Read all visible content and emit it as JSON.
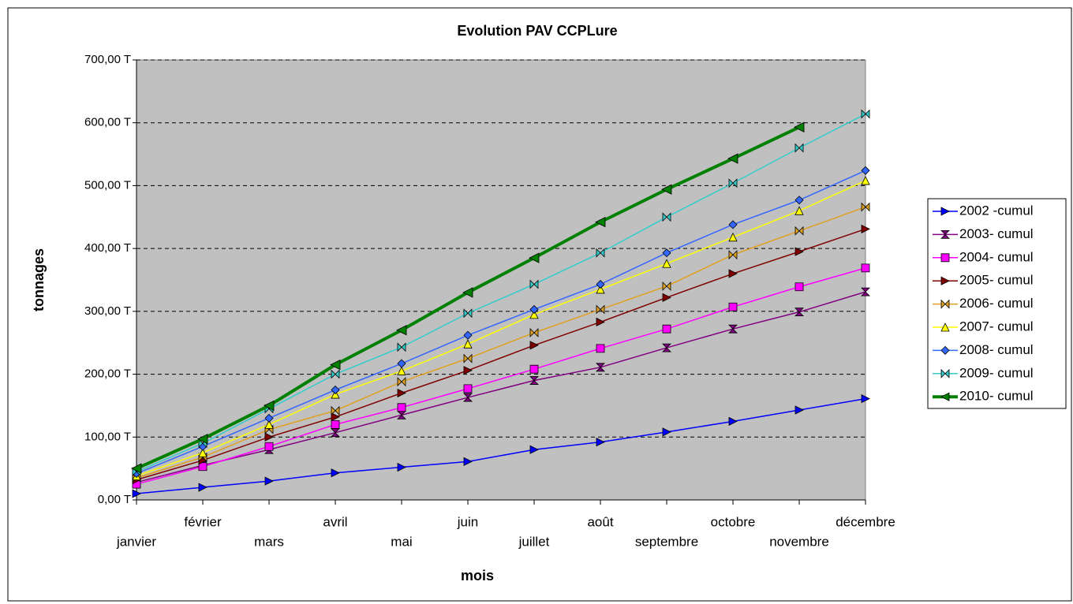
{
  "chart_data": {
    "type": "line",
    "title": "Evolution PAV CCPLure",
    "x_label": "mois",
    "y_label": "tonnages",
    "categories": [
      "janvier",
      "février",
      "mars",
      "avril",
      "mai",
      "juin",
      "juillet",
      "août",
      "septembre",
      "octobre",
      "novembre",
      "décembre"
    ],
    "ylim": [
      0,
      700
    ],
    "yticks": [
      {
        "value": 0,
        "label": "0,00 T"
      },
      {
        "value": 100,
        "label": "100,00 T"
      },
      {
        "value": 200,
        "label": "200,00 T"
      },
      {
        "value": 300,
        "label": "300,00 T"
      },
      {
        "value": 400,
        "label": "400,00 T"
      },
      {
        "value": 500,
        "label": "500,00 T"
      },
      {
        "value": 600,
        "label": "600,00 T"
      },
      {
        "value": 700,
        "label": "700,00 T"
      }
    ],
    "grid": true,
    "legend": "right",
    "series": [
      {
        "name": "2002 -cumul",
        "color": "#0000ff",
        "marker": "triangle-right",
        "values": [
          10,
          20,
          30,
          43,
          52,
          61,
          80,
          92,
          108,
          125,
          143,
          161
        ]
      },
      {
        "name": "2003- cumul",
        "color": "#800080",
        "marker": "hourglass",
        "values": [
          28,
          55,
          80,
          107,
          135,
          163,
          190,
          211,
          242,
          272,
          299,
          331
        ]
      },
      {
        "name": "2004- cumul",
        "color": "#ff00ff",
        "marker": "square",
        "values": [
          25,
          53,
          85,
          120,
          147,
          177,
          208,
          241,
          272,
          307,
          339,
          369
        ]
      },
      {
        "name": "2005- cumul",
        "color": "#800000",
        "marker": "triangle-right",
        "values": [
          32,
          63,
          100,
          132,
          170,
          206,
          246,
          283,
          322,
          360,
          395,
          431
        ]
      },
      {
        "name": "2006- cumul",
        "color": "#e0a020",
        "marker": "bowtie",
        "values": [
          35,
          68,
          112,
          142,
          188,
          225,
          266,
          303,
          340,
          390,
          428,
          466
        ]
      },
      {
        "name": "2007- cumul",
        "color": "#ffff00",
        "marker": "triangle-up",
        "values": [
          38,
          75,
          120,
          168,
          205,
          248,
          295,
          335,
          376,
          418,
          460,
          508
        ]
      },
      {
        "name": "2008- cumul",
        "color": "#3366ff",
        "marker": "diamond",
        "values": [
          42,
          85,
          130,
          175,
          217,
          262,
          303,
          343,
          393,
          438,
          477,
          524
        ]
      },
      {
        "name": "2009- cumul",
        "color": "#33cccc",
        "marker": "bowtie",
        "values": [
          45,
          90,
          145,
          200,
          243,
          297,
          343,
          393,
          450,
          504,
          560,
          614
        ]
      },
      {
        "name": "2010- cumul",
        "color": "#008000",
        "marker": "triangle-left",
        "width": 4,
        "values": [
          50,
          97,
          150,
          215,
          270,
          330,
          385,
          442,
          494,
          543,
          593,
          null
        ]
      }
    ]
  }
}
